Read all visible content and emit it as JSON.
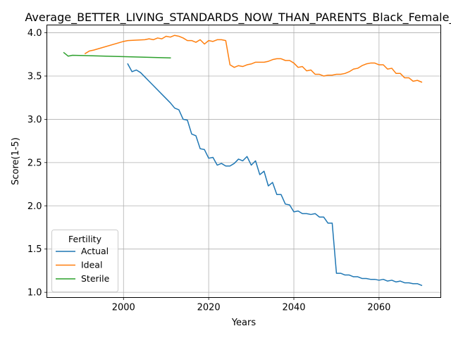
{
  "chart_data": {
    "type": "line",
    "title": "Average_BETTER_LIVING_STANDARDS_NOW_THAN_PARENTS_Black_Female_C",
    "xlabel": "Years",
    "ylabel": "Score(1-5)",
    "xlim": [
      1982,
      2074.5
    ],
    "ylim": [
      0.94,
      4.09
    ],
    "xticks": [
      2000,
      2020,
      2040,
      2060
    ],
    "yticks": [
      1.0,
      1.5,
      2.0,
      2.5,
      3.0,
      3.5,
      4.0
    ],
    "grid": true,
    "legend": {
      "title": "Fertility",
      "placement": "lower-left"
    },
    "series": [
      {
        "name": "Actual",
        "color": "#1f77b4",
        "x": [
          2001,
          2002,
          2003,
          2004,
          2005,
          2006,
          2007,
          2008,
          2009,
          2010,
          2011,
          2012,
          2013,
          2014,
          2015,
          2016,
          2017,
          2018,
          2019,
          2020,
          2021,
          2022,
          2023,
          2024,
          2025,
          2026,
          2027,
          2028,
          2029,
          2030,
          2031,
          2032,
          2033,
          2034,
          2035,
          2036,
          2037,
          2038,
          2039,
          2040,
          2041,
          2042,
          2043,
          2044,
          2045,
          2046,
          2047,
          2048,
          2049,
          2050,
          2051,
          2052,
          2053,
          2054,
          2055,
          2056,
          2057,
          2058,
          2059,
          2060,
          2061,
          2062,
          2063,
          2064,
          2065,
          2066,
          2067,
          2068,
          2069,
          2070
        ],
        "y": [
          3.64,
          3.55,
          3.57,
          3.54,
          3.49,
          3.44,
          3.39,
          3.34,
          3.29,
          3.24,
          3.19,
          3.13,
          3.11,
          3.0,
          2.99,
          2.83,
          2.81,
          2.66,
          2.65,
          2.55,
          2.56,
          2.47,
          2.49,
          2.46,
          2.46,
          2.49,
          2.54,
          2.52,
          2.57,
          2.47,
          2.52,
          2.36,
          2.4,
          2.23,
          2.27,
          2.13,
          2.13,
          2.02,
          2.01,
          1.93,
          1.94,
          1.91,
          1.91,
          1.9,
          1.91,
          1.87,
          1.87,
          1.8,
          1.8,
          1.22,
          1.22,
          1.2,
          1.2,
          1.18,
          1.18,
          1.16,
          1.16,
          1.15,
          1.15,
          1.14,
          1.15,
          1.13,
          1.14,
          1.12,
          1.13,
          1.11,
          1.11,
          1.1,
          1.1,
          1.08
        ]
      },
      {
        "name": "Ideal",
        "color": "#ff7f0e",
        "x": [
          1991,
          1992,
          1993,
          2000,
          2001,
          2005,
          2006,
          2007,
          2008,
          2009,
          2010,
          2011,
          2012,
          2013,
          2014,
          2015,
          2016,
          2017,
          2018,
          2019,
          2020,
          2021,
          2022,
          2023,
          2024,
          2025,
          2026,
          2027,
          2028,
          2029,
          2030,
          2031,
          2032,
          2033,
          2034,
          2035,
          2036,
          2037,
          2038,
          2039,
          2040,
          2041,
          2042,
          2043,
          2044,
          2045,
          2046,
          2047,
          2048,
          2049,
          2050,
          2051,
          2052,
          2053,
          2054,
          2055,
          2056,
          2057,
          2058,
          2059,
          2060,
          2061,
          2062,
          2063,
          2064,
          2065,
          2066,
          2067,
          2068,
          2069,
          2070
        ],
        "y": [
          3.76,
          3.79,
          3.8,
          3.9,
          3.91,
          3.92,
          3.93,
          3.92,
          3.94,
          3.93,
          3.96,
          3.95,
          3.97,
          3.96,
          3.94,
          3.91,
          3.91,
          3.89,
          3.92,
          3.87,
          3.91,
          3.9,
          3.92,
          3.92,
          3.91,
          3.63,
          3.6,
          3.62,
          3.61,
          3.63,
          3.64,
          3.66,
          3.66,
          3.66,
          3.67,
          3.69,
          3.7,
          3.7,
          3.68,
          3.68,
          3.65,
          3.6,
          3.61,
          3.56,
          3.57,
          3.52,
          3.52,
          3.5,
          3.51,
          3.51,
          3.52,
          3.52,
          3.53,
          3.55,
          3.58,
          3.59,
          3.62,
          3.64,
          3.65,
          3.65,
          3.63,
          3.63,
          3.58,
          3.59,
          3.53,
          3.53,
          3.48,
          3.48,
          3.44,
          3.45,
          3.43
        ]
      },
      {
        "name": "Sterile",
        "color": "#2ca02c",
        "x": [
          1986,
          1987,
          1988,
          2011
        ],
        "y": [
          3.77,
          3.73,
          3.74,
          3.71
        ]
      }
    ]
  }
}
